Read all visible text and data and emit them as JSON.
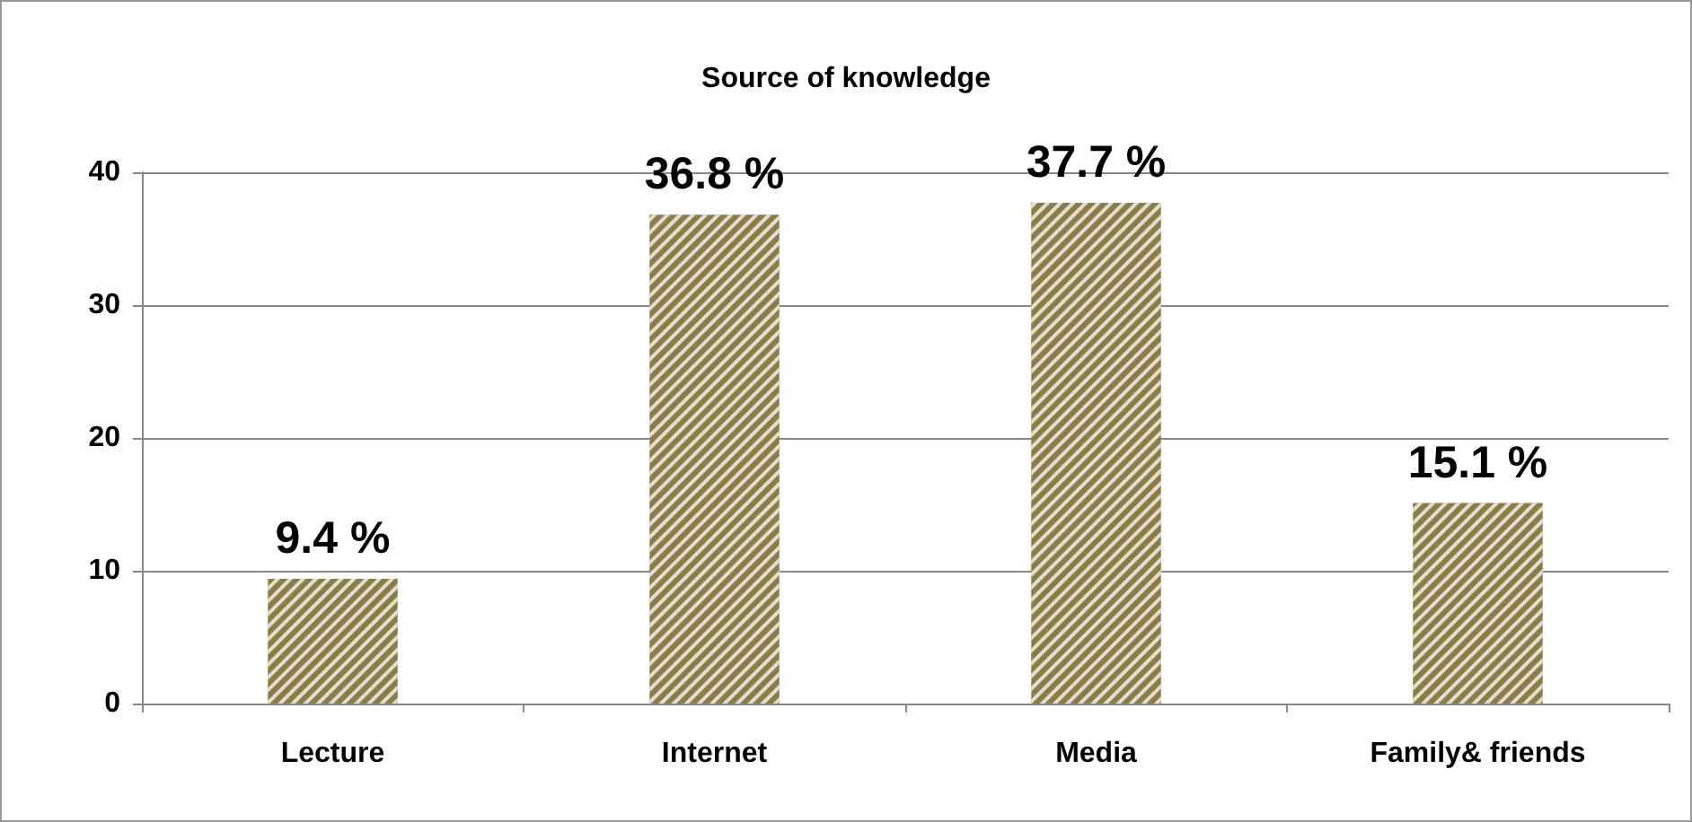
{
  "chart_data": {
    "type": "bar",
    "title": "Source of knowledge",
    "categories": [
      "Lecture",
      "Internet",
      "Media",
      "Family& friends"
    ],
    "values": [
      9.4,
      36.8,
      37.7,
      15.1
    ],
    "color": "#8b7d45",
    "value_labels": [
      "9.4 %",
      "36.8 %",
      "37.7 %",
      "15.1 %"
    ],
    "ylim": [
      0,
      40
    ],
    "yticks": [
      0,
      10,
      20,
      30,
      40
    ],
    "grid": "y"
  }
}
